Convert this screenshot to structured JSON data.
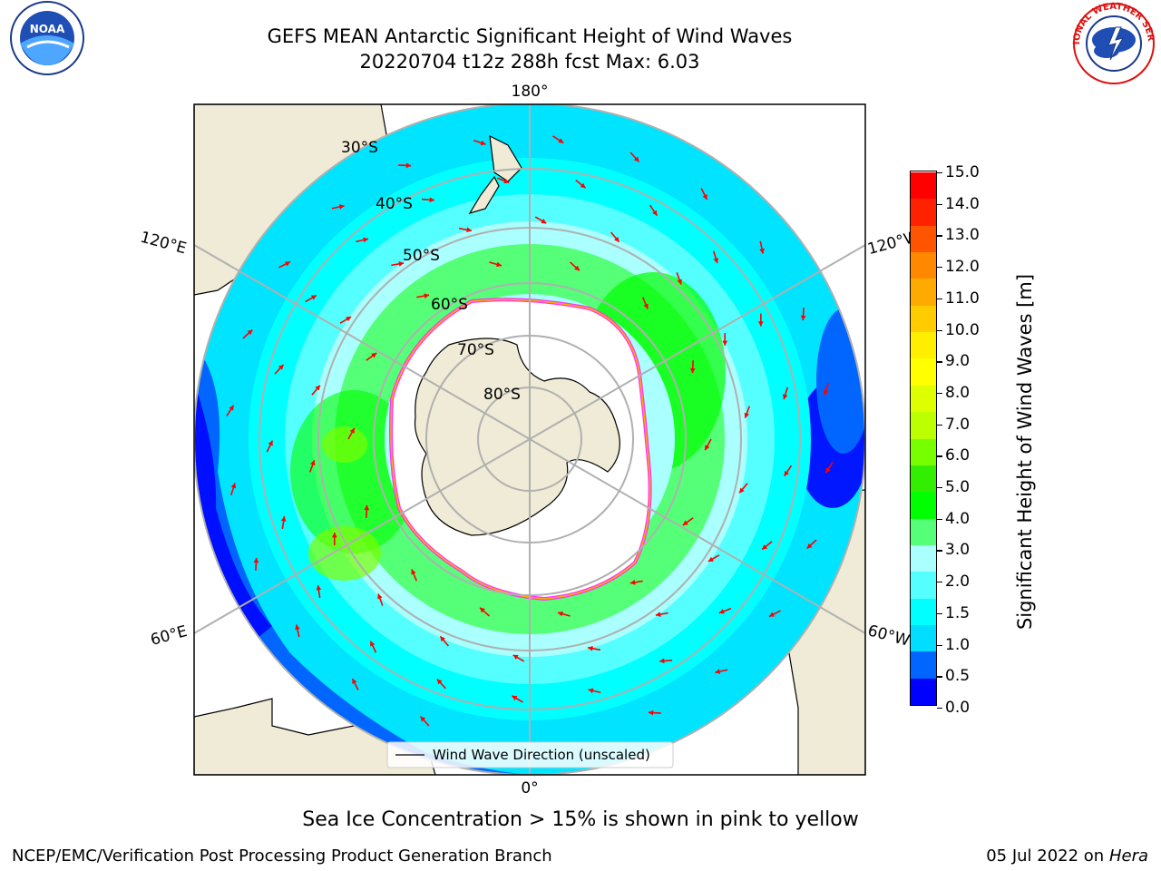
{
  "title_line1": "GEFS MEAN Antarctic Significant Height of Wind Waves",
  "title_line2": "20220704 t12z 288h fcst   Max: 6.03",
  "subtitle": "Sea Ice Concentration > 15% is shown in pink to yellow",
  "footer_left": "NCEP/EMC/Verification Post Processing Product Generation Branch",
  "footer_right_date": "05 Jul 2022 on ",
  "footer_right_machine": "Hera",
  "legend_label": "Wind Wave Direction (unscaled)",
  "logos": {
    "noaa_text": "NOAA",
    "nws_text": "NATIONAL WEATHER SERVICE"
  },
  "map": {
    "projection": "South Polar Stereographic",
    "longitude_labels": [
      "180°",
      "120°E",
      "120°W",
      "60°E",
      "60°W",
      "0°"
    ],
    "latitude_labels": [
      "30°S",
      "40°S",
      "50°S",
      "60°S",
      "70°S",
      "80°S"
    ],
    "colors": {
      "land": "#efebd6",
      "ice_free_low": "#00ffff",
      "arrow": "#ff0000",
      "grid": "#b0b0b0"
    }
  },
  "colorbar": {
    "title": "Significant Height of Wind Waves [m]",
    "ticks": [
      "15.0",
      "14.0",
      "13.0",
      "12.0",
      "11.0",
      "10.0",
      "9.0",
      "8.0",
      "7.0",
      "6.0",
      "5.0",
      "4.0",
      "3.0",
      "2.0",
      "1.5",
      "1.0",
      "0.5",
      "0.0"
    ],
    "colors": [
      "#0000ff",
      "#0066ff",
      "#00ddff",
      "#00ffff",
      "#55ffff",
      "#aaffff",
      "#55ff77",
      "#00ff00",
      "#33ee00",
      "#77ff00",
      "#bbff00",
      "#ddff00",
      "#ffff00",
      "#ffee00",
      "#ffcc00",
      "#ffaa00",
      "#ff8800",
      "#ff5500",
      "#ff2200",
      "#ff0000"
    ]
  }
}
